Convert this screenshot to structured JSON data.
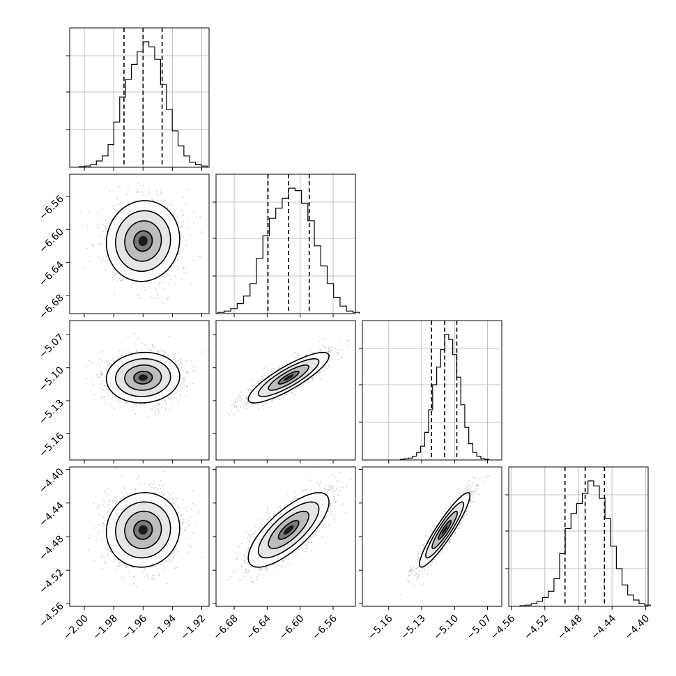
{
  "chart_data": {
    "type": "corner",
    "params": [
      {
        "center": -1.96,
        "sigma": 0.0125,
        "q": [
          -1.973,
          -1.96,
          -1.947
        ],
        "range": [
          -2.01,
          -1.915
        ],
        "ticks": [
          -2.0,
          -1.98,
          -1.96,
          -1.94,
          -1.92
        ],
        "tick_labels": [
          "−2.00",
          "−1.98",
          "−1.96",
          "−1.94",
          "−1.92"
        ]
      },
      {
        "center": -6.614,
        "sigma": 0.0245,
        "q": [
          -6.639,
          -6.614,
          -6.589
        ],
        "range": [
          -6.702,
          -6.533
        ],
        "ticks": [
          -6.68,
          -6.64,
          -6.6,
          -6.56
        ],
        "tick_labels": [
          "−6.68",
          "−6.64",
          "−6.60",
          "−6.56"
        ]
      },
      {
        "center": -5.109,
        "sigma": 0.0115,
        "q": [
          -5.121,
          -5.109,
          -5.098
        ],
        "range": [
          -5.184,
          -5.057
        ],
        "ticks": [
          -5.16,
          -5.13,
          -5.1,
          -5.07
        ],
        "tick_labels": [
          "−5.16",
          "−5.13",
          "−5.10",
          "−5.07"
        ]
      },
      {
        "center": -4.472,
        "sigma": 0.0222,
        "q": [
          -4.496,
          -4.472,
          -4.449
        ],
        "range": [
          -4.563,
          -4.397
        ],
        "ticks": [
          -4.56,
          -4.52,
          -4.48,
          -4.44,
          -4.4
        ],
        "tick_labels": [
          "−4.56",
          "−4.52",
          "−4.48",
          "−4.44",
          "−4.40"
        ]
      }
    ],
    "correlations": [
      [
        1,
        0.05,
        0.05,
        0.05
      ],
      [
        0.05,
        1,
        0.85,
        0.75
      ],
      [
        0.05,
        0.85,
        1,
        0.92
      ],
      [
        0.05,
        0.75,
        0.92,
        1
      ]
    ],
    "histograms": [
      [
        0.5,
        1,
        2,
        5,
        9,
        18,
        36,
        56,
        70,
        82,
        92,
        100,
        96,
        86,
        66,
        46,
        29,
        17,
        9,
        4,
        2,
        1
      ],
      [
        1,
        2,
        4,
        8,
        14,
        24,
        44,
        62,
        76,
        84,
        92,
        100,
        98,
        88,
        74,
        54,
        38,
        24,
        13,
        6,
        2,
        1
      ],
      [
        0.5,
        1,
        1.5,
        3,
        6,
        11,
        22,
        40,
        60,
        74,
        88,
        100,
        96,
        84,
        66,
        44,
        26,
        13,
        6,
        3,
        1,
        0.5
      ],
      [
        0.5,
        1,
        2,
        4,
        7,
        12,
        22,
        42,
        62,
        74,
        82,
        90,
        100,
        96,
        86,
        70,
        48,
        30,
        17,
        9,
        5,
        2,
        1
      ]
    ]
  }
}
